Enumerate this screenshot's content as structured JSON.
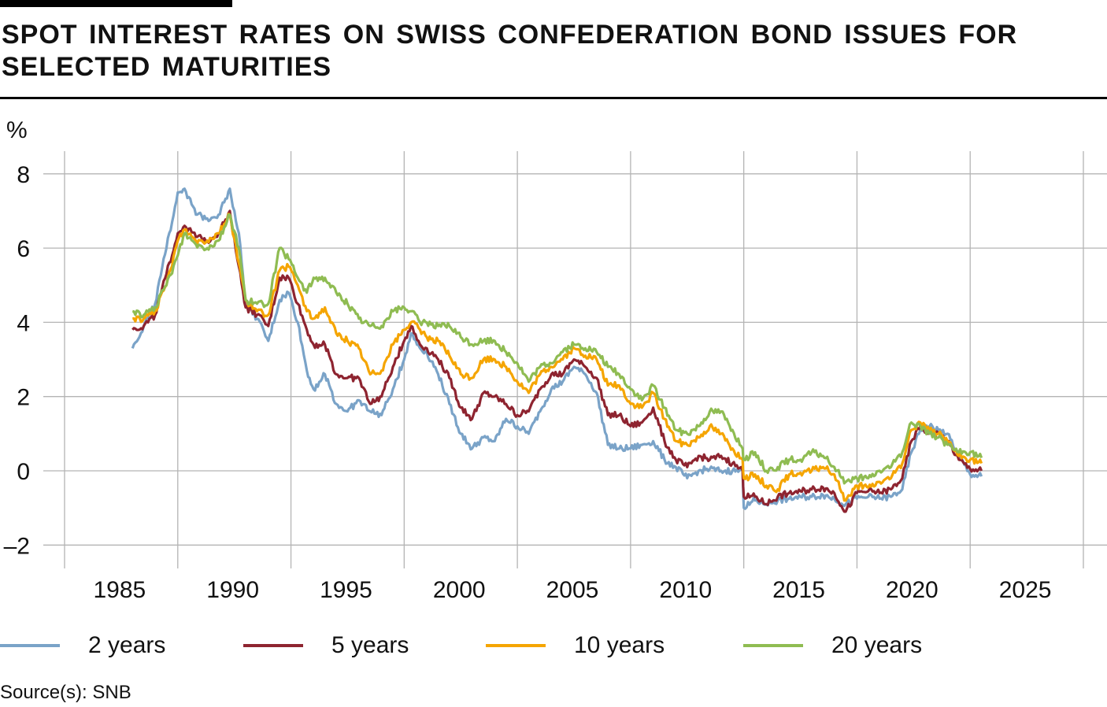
{
  "title": "Spot interest rates on Swiss Confederation bond issues for selected maturities",
  "source": "Source(s): SNB",
  "chart_data": {
    "type": "line",
    "title": "Spot interest rates on Swiss Confederation bond issues for selected maturities",
    "ylabel": "%",
    "xlabel": "",
    "xlim": [
      1985,
      2030
    ],
    "ylim": [
      -2.6,
      8.6
    ],
    "xticks": [
      "1985",
      "1990",
      "1995",
      "2000",
      "2005",
      "2010",
      "2015",
      "2020",
      "2025"
    ],
    "yticks": [
      "8",
      "6",
      "4",
      "2",
      "0",
      "–2"
    ],
    "ytick_values": [
      8,
      6,
      4,
      2,
      0,
      -2
    ],
    "grid": true,
    "legend_position": "bottom",
    "x": [
      1988,
      1988.5,
      1989,
      1989.5,
      1990,
      1990.3,
      1990.8,
      1991.3,
      1991.8,
      1992.3,
      1992.7,
      1993,
      1993.5,
      1994,
      1994.5,
      1994.9,
      1995.3,
      1995.7,
      1996,
      1996.5,
      1997,
      1997.5,
      1998,
      1998.5,
      1999,
      1999.5,
      2000,
      2000.3,
      2000.7,
      2001,
      2001.5,
      2002,
      2002.5,
      2003,
      2003.5,
      2004,
      2004.5,
      2005,
      2005.5,
      2006,
      2006.5,
      2007,
      2007.5,
      2008,
      2008.5,
      2009,
      2009.5,
      2010,
      2010.5,
      2011,
      2011.5,
      2012,
      2012.5,
      2013,
      2013.5,
      2014,
      2014.5,
      2014.95,
      2015,
      2015.5,
      2016,
      2016.5,
      2017,
      2017.5,
      2018,
      2018.5,
      2019,
      2019.5,
      2020,
      2020.5,
      2021,
      2021.5,
      2022,
      2022.4,
      2022.8,
      2023.2,
      2023.6,
      2024,
      2024.5,
      2025,
      2025.5
    ],
    "series": [
      {
        "name": "2 years",
        "color": "#7aa3c8",
        "values": [
          3.3,
          3.9,
          4.5,
          6.0,
          7.5,
          7.6,
          6.9,
          6.8,
          6.9,
          7.6,
          6.4,
          4.5,
          4.1,
          3.5,
          4.6,
          4.8,
          4.0,
          2.7,
          2.2,
          2.6,
          1.8,
          1.6,
          1.9,
          1.6,
          1.5,
          2.2,
          3.0,
          3.7,
          3.3,
          3.2,
          2.6,
          1.8,
          1.0,
          0.6,
          0.9,
          0.8,
          1.4,
          1.2,
          1.0,
          1.6,
          2.2,
          2.4,
          2.8,
          2.6,
          2.1,
          0.7,
          0.6,
          0.6,
          0.7,
          0.8,
          0.3,
          0.1,
          -0.2,
          0.0,
          0.05,
          0.0,
          0.0,
          0.0,
          -1.0,
          -0.8,
          -0.9,
          -0.8,
          -0.75,
          -0.7,
          -0.7,
          -0.65,
          -0.75,
          -0.9,
          -0.75,
          -0.7,
          -0.75,
          -0.7,
          -0.5,
          0.5,
          1.1,
          1.2,
          1.1,
          1.0,
          0.4,
          -0.1,
          -0.15
        ]
      },
      {
        "name": "5 years",
        "color": "#8e2430",
        "values": [
          3.8,
          3.9,
          4.2,
          5.3,
          6.4,
          6.6,
          6.3,
          6.2,
          6.4,
          7.0,
          5.5,
          4.4,
          4.2,
          3.9,
          5.2,
          5.2,
          4.5,
          3.8,
          3.4,
          3.4,
          2.6,
          2.5,
          2.5,
          1.8,
          2.0,
          2.8,
          3.5,
          3.9,
          3.4,
          3.3,
          3.0,
          2.5,
          1.7,
          1.4,
          2.1,
          2.0,
          1.8,
          1.5,
          1.6,
          2.2,
          2.6,
          2.6,
          3.0,
          2.8,
          2.5,
          1.5,
          1.5,
          1.2,
          1.3,
          1.7,
          0.8,
          0.3,
          0.1,
          0.4,
          0.3,
          0.4,
          0.2,
          0.0,
          -0.7,
          -0.7,
          -0.9,
          -0.7,
          -0.6,
          -0.55,
          -0.5,
          -0.45,
          -0.6,
          -1.1,
          -0.6,
          -0.55,
          -0.6,
          -0.5,
          -0.2,
          0.8,
          1.2,
          1.0,
          1.0,
          0.8,
          0.3,
          0.05,
          0.0
        ]
      },
      {
        "name": "10 years",
        "color": "#f5a500",
        "values": [
          4.1,
          4.1,
          4.3,
          5.0,
          6.2,
          6.5,
          6.2,
          6.2,
          6.4,
          6.9,
          5.6,
          4.6,
          4.3,
          4.2,
          5.4,
          5.5,
          5.0,
          4.3,
          4.1,
          4.4,
          3.7,
          3.5,
          3.3,
          2.6,
          2.7,
          3.4,
          3.8,
          4.0,
          3.8,
          3.6,
          3.5,
          3.1,
          2.6,
          2.5,
          3.0,
          3.0,
          2.8,
          2.4,
          2.1,
          2.6,
          2.8,
          3.0,
          3.3,
          3.1,
          3.0,
          2.3,
          2.3,
          1.8,
          1.7,
          2.1,
          1.4,
          0.8,
          0.7,
          0.9,
          1.2,
          1.0,
          0.6,
          0.3,
          -0.2,
          -0.1,
          -0.4,
          -0.5,
          -0.1,
          -0.05,
          0.0,
          0.1,
          -0.1,
          -0.8,
          -0.4,
          -0.45,
          -0.3,
          -0.2,
          0.2,
          1.1,
          1.3,
          1.1,
          1.0,
          0.8,
          0.4,
          0.3,
          0.2
        ]
      },
      {
        "name": "20 years",
        "color": "#8fbc52",
        "values": [
          4.3,
          4.2,
          4.4,
          5.0,
          5.8,
          6.4,
          6.1,
          6.0,
          6.2,
          6.9,
          6.0,
          4.6,
          4.5,
          4.5,
          6.0,
          5.7,
          5.2,
          4.8,
          5.2,
          5.2,
          4.8,
          4.5,
          4.1,
          3.9,
          3.9,
          4.3,
          4.4,
          4.3,
          4.0,
          4.0,
          3.9,
          3.9,
          3.6,
          3.4,
          3.5,
          3.5,
          3.2,
          2.9,
          2.4,
          2.8,
          2.9,
          3.2,
          3.4,
          3.3,
          3.2,
          2.8,
          2.6,
          2.2,
          1.9,
          2.3,
          1.7,
          1.1,
          1.0,
          1.2,
          1.6,
          1.6,
          1.1,
          0.6,
          0.3,
          0.5,
          0.0,
          0.1,
          0.3,
          0.3,
          0.5,
          0.4,
          0.1,
          -0.3,
          -0.2,
          -0.2,
          0.0,
          0.1,
          0.5,
          1.3,
          1.2,
          1.0,
          0.9,
          0.7,
          0.5,
          0.5,
          0.35
        ]
      }
    ]
  }
}
